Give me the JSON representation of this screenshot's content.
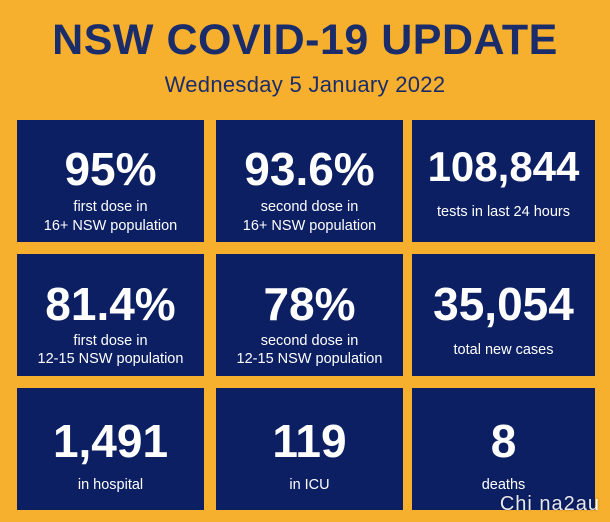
{
  "header": {
    "title": "NSW COVID-19 UPDATE",
    "date": "Wednesday 5 January 2022"
  },
  "tiles": [
    {
      "value": "95%",
      "line1": "first dose in",
      "line2": "16+ NSW population"
    },
    {
      "value": "93.6%",
      "line1": "second dose in",
      "line2": "16+ NSW population"
    },
    {
      "value": "108,844",
      "line1": "tests in last 24 hours"
    },
    {
      "value": "81.4%",
      "line1": "first dose in",
      "line2": "12-15 NSW population"
    },
    {
      "value": "78%",
      "line1": "second dose in",
      "line2": "12-15 NSW population"
    },
    {
      "value": "35,054",
      "line1": "total new cases"
    },
    {
      "value": "1,491",
      "line1": "in hospital"
    },
    {
      "value": "119",
      "line1": "in ICU"
    },
    {
      "value": "8",
      "line1": "deaths"
    }
  ],
  "watermark": "Chi na2au",
  "colors": {
    "background": "#F6B02E",
    "tile": "#0C1F63",
    "heading": "#1B2C6B",
    "tile_text": "#FFFFFF"
  }
}
